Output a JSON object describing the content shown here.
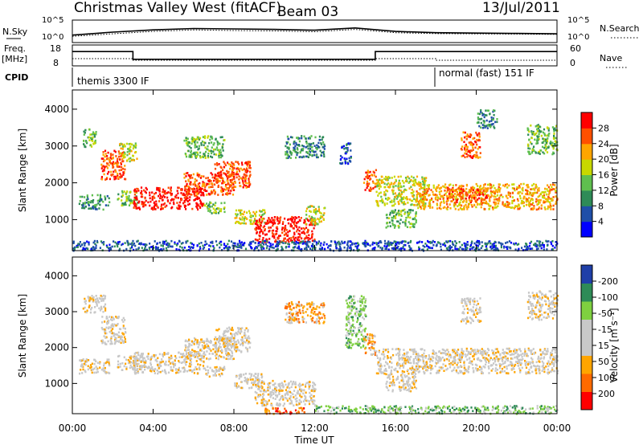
{
  "header": {
    "station": "Christmas Valley West (fitACF)",
    "beam": "Beam 03",
    "date": "13/Jul/2011"
  },
  "params": {
    "nsky_label": "N.Sky",
    "nsky_ticks": [
      "10^5",
      "10^0"
    ],
    "nsearch_label": "N.Search",
    "nsearch_ticks": [
      "10^5",
      "10^0"
    ],
    "freq_label": "Freq.",
    "freq_unit": "[MHz]",
    "freq_ticks": [
      "18",
      "8"
    ],
    "nave_label": "Nave",
    "nave_ticks": [
      "60",
      "0"
    ],
    "cpid_label": "CPID",
    "cpid_segments": [
      {
        "start": "00:00",
        "label": "themis 3300 IF"
      },
      {
        "start": "18:00",
        "label": "normal (fast) 151 IF"
      }
    ]
  },
  "axes": {
    "ylabel": "Slant Range [km]",
    "yticks": [
      "4000",
      "3000",
      "2000",
      "1000"
    ],
    "xlabel": "Time UT",
    "xticks": [
      "00:00",
      "04:00",
      "08:00",
      "12:00",
      "16:00",
      "20:00",
      "00:00"
    ]
  },
  "colors": {
    "power": [
      "#0000ff",
      "#1f4fa8",
      "#2e8b57",
      "#5fbf4f",
      "#c8d800",
      "#ffa500",
      "#ff5000",
      "#ff0000"
    ],
    "velocity": [
      "#ff0000",
      "#ff6a00",
      "#ffa500",
      "#c8c8c8",
      "#c8c8c8",
      "#7fd040",
      "#2e8b57",
      "#1f3fa8"
    ]
  },
  "chart_data": [
    {
      "type": "line",
      "title": "N.Sky / N.Search",
      "x": [
        "00:00",
        "02:00",
        "04:00",
        "06:00",
        "08:00",
        "10:00",
        "12:00",
        "14:00",
        "16:00",
        "18:00",
        "20:00",
        "22:00",
        "24:00"
      ],
      "series": [
        {
          "name": "N.Sky",
          "values": [
            40,
            200,
            700,
            1500,
            1200,
            900,
            600,
            2000,
            300,
            150,
            120,
            100,
            80
          ]
        },
        {
          "name": "N.Search",
          "values": [
            20,
            80,
            300,
            700,
            500,
            400,
            250,
            900,
            150,
            90,
            80,
            70,
            60
          ]
        }
      ],
      "yscale": "log",
      "ylim": [
        1,
        100000
      ]
    },
    {
      "type": "line",
      "title": "Freq. / Nave",
      "series": [
        {
          "name": "Freq.",
          "x": [
            0,
            3,
            3,
            15,
            15,
            24
          ],
          "values": [
            15,
            15,
            11,
            11,
            15,
            15
          ]
        },
        {
          "name": "Nave",
          "x": [
            0,
            3,
            3,
            15,
            15,
            18,
            18,
            24
          ],
          "values": [
            20,
            20,
            15,
            15,
            20,
            20,
            15,
            15
          ]
        }
      ],
      "ylim_freq": [
        8,
        18
      ],
      "ylim_nave": [
        0,
        60
      ]
    },
    {
      "type": "heatmap",
      "title": "Power [dB]",
      "colorbar_ticks": [
        "28",
        "24",
        "20",
        "16",
        "12",
        "8",
        "4"
      ],
      "colorbar_label": "Power [dB]",
      "xlim": [
        0,
        24
      ],
      "ylim": [
        180,
        4500
      ],
      "regions": [
        {
          "t0": 0.3,
          "t1": 1.8,
          "r0": 1300,
          "r1": 1700,
          "level": 2
        },
        {
          "t0": 0.5,
          "t1": 1.2,
          "r0": 3000,
          "r1": 3500,
          "level": 3
        },
        {
          "t0": 1.4,
          "t1": 2.6,
          "r0": 2100,
          "r1": 2900,
          "level": 6
        },
        {
          "t0": 2.3,
          "t1": 3.2,
          "r0": 2600,
          "r1": 3100,
          "level": 4
        },
        {
          "t0": 2.2,
          "t1": 3.2,
          "r0": 1400,
          "r1": 1800,
          "level": 3
        },
        {
          "t0": 3.0,
          "t1": 6.5,
          "r0": 1300,
          "r1": 1900,
          "level": 7
        },
        {
          "t0": 5.5,
          "t1": 8.0,
          "r0": 1700,
          "r1": 2300,
          "level": 6
        },
        {
          "t0": 7.0,
          "t1": 8.8,
          "r0": 1900,
          "r1": 2600,
          "level": 6
        },
        {
          "t0": 5.5,
          "t1": 7.5,
          "r0": 2700,
          "r1": 3300,
          "level": 3
        },
        {
          "t0": 6.5,
          "t1": 7.5,
          "r0": 1200,
          "r1": 1500,
          "level": 3
        },
        {
          "t0": 8.0,
          "t1": 9.5,
          "r0": 900,
          "r1": 1300,
          "level": 4
        },
        {
          "t0": 9.0,
          "t1": 12.0,
          "r0": 400,
          "r1": 1100,
          "level": 7
        },
        {
          "t0": 10.5,
          "t1": 12.5,
          "r0": 2700,
          "r1": 3300,
          "level": 2
        },
        {
          "t0": 11.5,
          "t1": 12.5,
          "r0": 900,
          "r1": 1400,
          "level": 4
        },
        {
          "t0": 13.2,
          "t1": 13.8,
          "r0": 2500,
          "r1": 3100,
          "level": 1
        },
        {
          "t0": 14.4,
          "t1": 15.0,
          "r0": 1800,
          "r1": 2400,
          "level": 6
        },
        {
          "t0": 15.0,
          "t1": 17.5,
          "r0": 1400,
          "r1": 2200,
          "level": 4
        },
        {
          "t0": 17.0,
          "t1": 24.0,
          "r0": 1300,
          "r1": 2000,
          "level": 5
        },
        {
          "t0": 18.5,
          "t1": 20.5,
          "r0": 1500,
          "r1": 1900,
          "level": 6
        },
        {
          "t0": 15.5,
          "t1": 17.0,
          "r0": 800,
          "r1": 1300,
          "level": 3
        },
        {
          "t0": 19.2,
          "t1": 20.2,
          "r0": 2700,
          "r1": 3400,
          "level": 6
        },
        {
          "t0": 20.0,
          "t1": 21.0,
          "r0": 3500,
          "r1": 4000,
          "level": 2
        },
        {
          "t0": 22.5,
          "t1": 24.0,
          "r0": 2800,
          "r1": 3600,
          "level": 3
        },
        {
          "t0": 0.0,
          "t1": 24.0,
          "r0": 180,
          "r1": 450,
          "level": 1
        }
      ]
    },
    {
      "type": "heatmap",
      "title": "Velocity [m s-1]",
      "colorbar_ticks": [
        "200",
        "100",
        "50",
        "15",
        "-15",
        "-50",
        "-100",
        "-200"
      ],
      "colorbar_label": "Velocity [m s⁻¹]",
      "xlim": [
        0,
        24
      ],
      "ylim": [
        180,
        4500
      ],
      "regions": [
        {
          "t0": 0.3,
          "t1": 1.8,
          "r0": 1300,
          "r1": 1700,
          "level": 3
        },
        {
          "t0": 0.5,
          "t1": 1.6,
          "r0": 3000,
          "r1": 3500,
          "level": 3
        },
        {
          "t0": 1.4,
          "t1": 2.6,
          "r0": 2100,
          "r1": 2900,
          "level": 3
        },
        {
          "t0": 2.2,
          "t1": 3.2,
          "r0": 1400,
          "r1": 1800,
          "level": 3
        },
        {
          "t0": 3.0,
          "t1": 6.5,
          "r0": 1300,
          "r1": 1900,
          "level": 3
        },
        {
          "t0": 5.5,
          "t1": 8.0,
          "r0": 1700,
          "r1": 2300,
          "level": 3
        },
        {
          "t0": 7.0,
          "t1": 8.8,
          "r0": 1900,
          "r1": 2600,
          "level": 3
        },
        {
          "t0": 6.5,
          "t1": 7.5,
          "r0": 1200,
          "r1": 1500,
          "level": 3
        },
        {
          "t0": 8.0,
          "t1": 9.5,
          "r0": 900,
          "r1": 1300,
          "level": 3
        },
        {
          "t0": 9.0,
          "t1": 12.0,
          "r0": 400,
          "r1": 1100,
          "level": 3
        },
        {
          "t0": 9.5,
          "t1": 11.5,
          "r0": 180,
          "r1": 350,
          "level": 1
        },
        {
          "t0": 10.5,
          "t1": 12.5,
          "r0": 2700,
          "r1": 3300,
          "level": 2
        },
        {
          "t0": 13.5,
          "t1": 14.5,
          "r0": 2000,
          "r1": 3500,
          "level": 5
        },
        {
          "t0": 14.4,
          "t1": 15.0,
          "r0": 1800,
          "r1": 2400,
          "level": 2
        },
        {
          "t0": 15.0,
          "t1": 24.0,
          "r0": 1300,
          "r1": 2000,
          "level": 3
        },
        {
          "t0": 15.5,
          "t1": 17.0,
          "r0": 800,
          "r1": 1300,
          "level": 3
        },
        {
          "t0": 19.2,
          "t1": 20.2,
          "r0": 2700,
          "r1": 3400,
          "level": 3
        },
        {
          "t0": 22.5,
          "t1": 24.0,
          "r0": 2800,
          "r1": 3600,
          "level": 3
        },
        {
          "t0": 12.0,
          "t1": 24.0,
          "r0": 180,
          "r1": 400,
          "level": 5
        }
      ]
    }
  ]
}
